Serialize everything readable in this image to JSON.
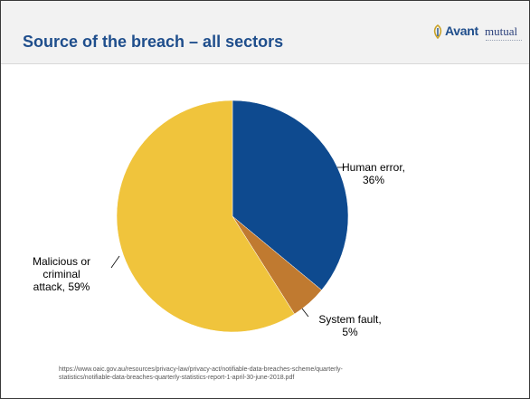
{
  "header": {
    "title": "Source of the breach – all sectors",
    "logo": {
      "brand": "Avant",
      "suffix": "mutual",
      "icon": "avant-leaf-icon"
    }
  },
  "chart_data": {
    "type": "pie",
    "title": "",
    "slices": [
      {
        "label": "Human error,",
        "value_label": "36%",
        "value": 36,
        "color": "#0e4a8f"
      },
      {
        "label": "System fault,",
        "value_label": "5%",
        "value": 5,
        "color": "#c07a30"
      },
      {
        "label": "Malicious or criminal attack, 59%",
        "lines": [
          "Malicious or",
          "criminal",
          "attack, 59%"
        ],
        "value": 59,
        "color": "#f0c43c"
      }
    ]
  },
  "source": {
    "line1": "https://www.oaic.gov.au/resources/privacy-law/privacy-act/notifiable-data-breaches-scheme/quarterly-",
    "line2": "statistics/notifiable-data-breaches-quarterly-statistics-report-1-april-30-june-2018.pdf"
  }
}
